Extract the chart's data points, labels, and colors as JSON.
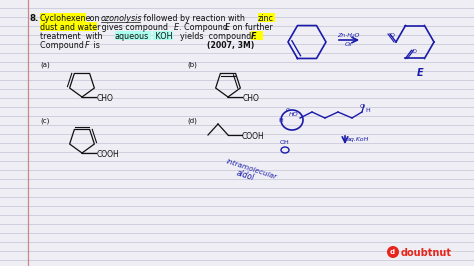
{
  "bg_color": "#eeeef4",
  "line_color": "#b8b8cc",
  "margin_color": "#cc8888",
  "text_color": "#111111",
  "blue_ink": "#1a1aaa",
  "highlight_yellow": "#ffff00",
  "highlight_cyan": "#aaffee",
  "red_logo": "#e8251b",
  "doubtnut_text": "doubtnut",
  "question_number": "8.",
  "year_mark": "(2007, 3M)"
}
